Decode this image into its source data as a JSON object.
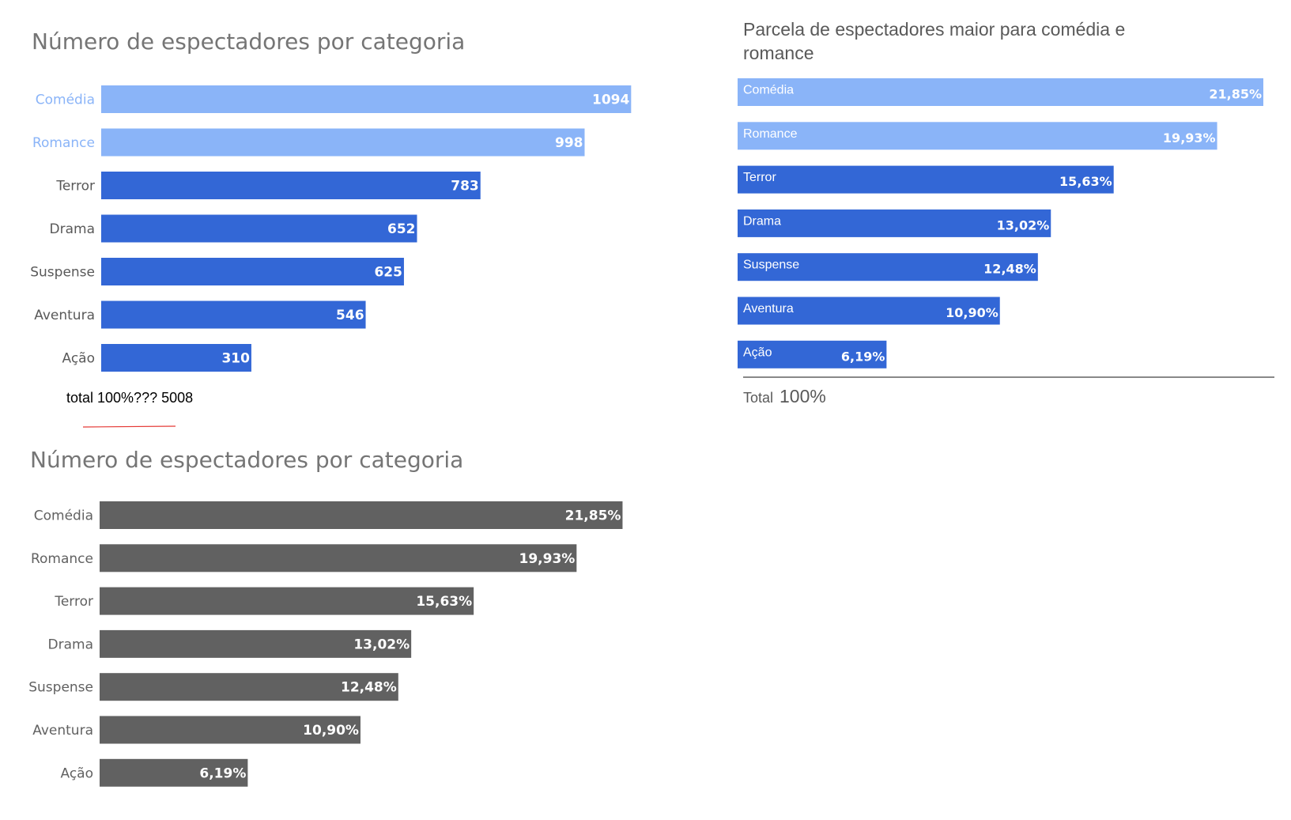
{
  "chart_data": [
    {
      "type": "bar",
      "orientation": "horizontal",
      "title": "Número de espectadores por categoria",
      "categories": [
        "Comédia",
        "Romance",
        "Terror",
        "Drama",
        "Suspense",
        "Aventura",
        "Ação"
      ],
      "values": [
        1094,
        998,
        783,
        652,
        625,
        546,
        310
      ],
      "value_labels": [
        "1094",
        "998",
        "783",
        "652",
        "625",
        "546",
        "310"
      ],
      "colors": [
        "#8ab4f8",
        "#8ab4f8",
        "#3367d6",
        "#3367d6",
        "#3367d6",
        "#3367d6",
        "#3367d6"
      ],
      "category_label_colors": [
        "#8ab4f8",
        "#8ab4f8",
        "#595959",
        "#595959",
        "#595959",
        "#595959",
        "#595959"
      ],
      "xlim": [
        0,
        1100
      ],
      "note": "total 100%??? 5008"
    },
    {
      "type": "bar",
      "orientation": "horizontal",
      "title": "Número de espectadores por categoria",
      "categories": [
        "Comédia",
        "Romance",
        "Terror",
        "Drama",
        "Suspense",
        "Aventura",
        "Ação"
      ],
      "values": [
        21.85,
        19.93,
        15.63,
        13.02,
        12.48,
        10.9,
        6.19
      ],
      "value_labels": [
        "21,85%",
        "19,93%",
        "15,63%",
        "13,02%",
        "12,48%",
        "10,90%",
        "6,19%"
      ],
      "colors": [
        "#616161",
        "#616161",
        "#616161",
        "#616161",
        "#616161",
        "#616161",
        "#616161"
      ],
      "category_label_colors": [
        "#616161",
        "#616161",
        "#616161",
        "#616161",
        "#616161",
        "#616161",
        "#616161"
      ],
      "xlim": [
        0,
        22
      ]
    },
    {
      "type": "bar",
      "orientation": "horizontal",
      "title": "Parcela de espectadores maior para comédia e",
      "title_line2": "romance",
      "categories": [
        "Comédia",
        "Romance",
        "Terror",
        "Drama",
        "Suspense",
        "Aventura",
        "Ação"
      ],
      "values": [
        21.85,
        19.93,
        15.63,
        13.02,
        12.48,
        10.9,
        6.19
      ],
      "value_labels": [
        "21,85%",
        "19,93%",
        "15,63%",
        "13,02%",
        "12,48%",
        "10,90%",
        "6,19%"
      ],
      "colors": [
        "#8ab4f8",
        "#8ab4f8",
        "#3367d6",
        "#3367d6",
        "#3367d6",
        "#3367d6",
        "#3367d6"
      ],
      "xlim": [
        0,
        21.85
      ],
      "total_label": "Total",
      "total_value": "100%"
    }
  ]
}
